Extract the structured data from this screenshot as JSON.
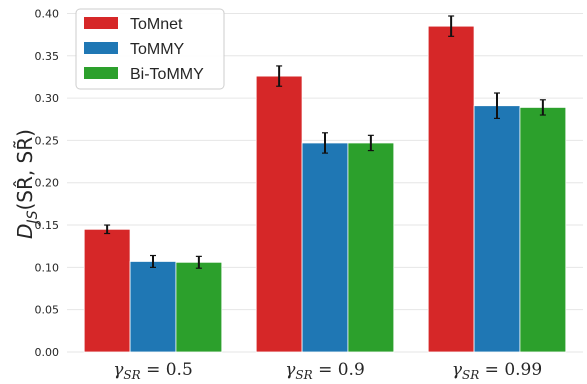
{
  "chart_data": {
    "type": "bar",
    "categories": [
      "γSR = 0.5",
      "γSR = 0.9",
      "γSR = 0.99"
    ],
    "category_parts": [
      {
        "symbol": "γ",
        "sub": "SR",
        "rest": " = 0.5"
      },
      {
        "symbol": "γ",
        "sub": "SR",
        "rest": " = 0.9"
      },
      {
        "symbol": "γ",
        "sub": "SR",
        "rest": " = 0.99"
      }
    ],
    "series": [
      {
        "name": "ToMnet",
        "color": "#d62728",
        "values": [
          0.145,
          0.326,
          0.385
        ],
        "errors": [
          0.005,
          0.012,
          0.012
        ]
      },
      {
        "name": "ToMMY",
        "color": "#1f77b4",
        "values": [
          0.107,
          0.247,
          0.291
        ],
        "errors": [
          0.007,
          0.012,
          0.015
        ]
      },
      {
        "name": "Bi-ToMMY",
        "color": "#2ca02c",
        "values": [
          0.106,
          0.247,
          0.289
        ],
        "errors": [
          0.007,
          0.009,
          0.009
        ]
      }
    ],
    "ylabel": "D_JS(SR̂, SR̃)",
    "ylabel_parts": {
      "main": "D",
      "sub": "JS",
      "args": "(SR̂, SR̃)"
    },
    "ylim": [
      0,
      0.41
    ],
    "yticks": [
      "0.00",
      "0.05",
      "0.10",
      "0.15",
      "0.20",
      "0.25",
      "0.30",
      "0.35",
      "0.40"
    ],
    "grid": true,
    "legend_position": "top-left",
    "background": "#ffffff",
    "grid_color": "#e6e6e6"
  }
}
